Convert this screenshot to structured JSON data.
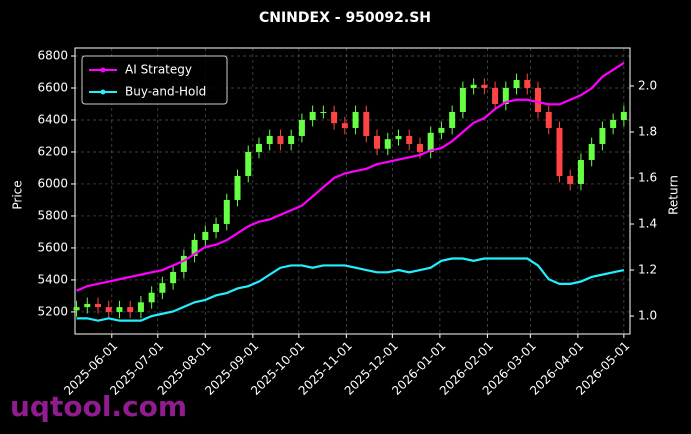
{
  "chart_data": {
    "type": "candlestick_with_returns",
    "title": "CNINDEX - 950092.SH",
    "ylabel": "Price",
    "y2label": "Return",
    "watermark": "uqtool.com",
    "x": [
      "2025-05-09",
      "2025-05-16",
      "2025-05-23",
      "2025-05-30",
      "2025-06-06",
      "2025-06-13",
      "2025-06-20",
      "2025-06-27",
      "2025-07-04",
      "2025-07-11",
      "2025-07-18",
      "2025-07-25",
      "2025-08-01",
      "2025-08-08",
      "2025-08-15",
      "2025-08-22",
      "2025-08-29",
      "2025-09-05",
      "2025-09-12",
      "2025-09-19",
      "2025-09-26",
      "2025-10-03",
      "2025-10-10",
      "2025-10-17",
      "2025-10-24",
      "2025-10-31",
      "2025-11-07",
      "2025-11-14",
      "2025-11-21",
      "2025-11-28",
      "2025-12-05",
      "2025-12-12",
      "2025-12-19",
      "2025-12-26",
      "2026-01-02",
      "2026-01-09",
      "2026-01-16",
      "2026-01-23",
      "2026-01-30",
      "2026-02-06",
      "2026-02-13",
      "2026-02-20",
      "2026-02-27",
      "2026-03-06",
      "2026-03-13",
      "2026-03-20",
      "2026-03-27",
      "2026-04-03",
      "2026-04-10",
      "2026-04-17",
      "2026-04-24",
      "2026-05-01"
    ],
    "candles": {
      "up_color": "#66ff44",
      "down_color": "#ff4444",
      "open": [
        5210,
        5230,
        5250,
        5230,
        5200,
        5230,
        5200,
        5260,
        5320,
        5380,
        5450,
        5550,
        5650,
        5700,
        5750,
        5900,
        6050,
        6200,
        6250,
        6300,
        6250,
        6300,
        6400,
        6450,
        6450,
        6380,
        6350,
        6450,
        6300,
        6220,
        6280,
        6300,
        6250,
        6200,
        6320,
        6350,
        6450,
        6600,
        6620,
        6600,
        6500,
        6600,
        6650,
        6600,
        6450,
        6350,
        6050,
        6000,
        6150,
        6250,
        6350,
        6400
      ],
      "high": [
        5270,
        5290,
        5290,
        5270,
        5270,
        5270,
        5300,
        5360,
        5420,
        5490,
        5590,
        5690,
        5740,
        5790,
        5940,
        6090,
        6240,
        6290,
        6340,
        6340,
        6340,
        6440,
        6490,
        6490,
        6490,
        6420,
        6490,
        6490,
        6340,
        6320,
        6340,
        6340,
        6290,
        6360,
        6390,
        6490,
        6640,
        6660,
        6660,
        6640,
        6640,
        6690,
        6690,
        6640,
        6490,
        6390,
        6090,
        6190,
        6290,
        6390,
        6440,
        6490
      ],
      "low": [
        5170,
        5190,
        5190,
        5160,
        5160,
        5160,
        5160,
        5220,
        5280,
        5340,
        5410,
        5510,
        5610,
        5660,
        5710,
        5860,
        6010,
        6160,
        6210,
        6210,
        6210,
        6260,
        6360,
        6410,
        6340,
        6310,
        6310,
        6260,
        6180,
        6180,
        6240,
        6210,
        6160,
        6160,
        6280,
        6310,
        6410,
        6560,
        6560,
        6460,
        6460,
        6560,
        6560,
        6410,
        6310,
        6010,
        5960,
        5960,
        6110,
        6210,
        6310,
        6360
      ],
      "close": [
        5230,
        5250,
        5230,
        5200,
        5230,
        5200,
        5260,
        5320,
        5380,
        5450,
        5550,
        5650,
        5700,
        5750,
        5900,
        6050,
        6200,
        6250,
        6300,
        6250,
        6300,
        6400,
        6450,
        6450,
        6380,
        6350,
        6450,
        6300,
        6220,
        6280,
        6300,
        6250,
        6200,
        6320,
        6350,
        6450,
        6600,
        6620,
        6600,
        6500,
        6600,
        6650,
        6600,
        6450,
        6350,
        6050,
        6000,
        6150,
        6250,
        6350,
        6400,
        6450
      ]
    },
    "series": [
      {
        "name": "AI Strategy",
        "color": "#ff00ff",
        "axis": "y2",
        "values": [
          1.11,
          1.13,
          1.14,
          1.15,
          1.16,
          1.17,
          1.18,
          1.19,
          1.2,
          1.22,
          1.24,
          1.27,
          1.3,
          1.31,
          1.33,
          1.36,
          1.39,
          1.41,
          1.42,
          1.44,
          1.46,
          1.48,
          1.52,
          1.56,
          1.6,
          1.62,
          1.63,
          1.64,
          1.66,
          1.67,
          1.68,
          1.69,
          1.7,
          1.72,
          1.73,
          1.76,
          1.8,
          1.84,
          1.86,
          1.9,
          1.93,
          1.94,
          1.94,
          1.93,
          1.92,
          1.92,
          1.94,
          1.96,
          1.99,
          2.04,
          2.07,
          2.1
        ]
      },
      {
        "name": "Buy-and-Hold",
        "color": "#22f0ff",
        "axis": "y2",
        "values": [
          0.99,
          0.99,
          0.98,
          0.99,
          0.98,
          0.98,
          0.98,
          1.0,
          1.01,
          1.02,
          1.04,
          1.06,
          1.07,
          1.09,
          1.1,
          1.12,
          1.13,
          1.15,
          1.18,
          1.21,
          1.22,
          1.22,
          1.21,
          1.22,
          1.22,
          1.22,
          1.21,
          1.2,
          1.19,
          1.19,
          1.2,
          1.19,
          1.2,
          1.21,
          1.24,
          1.25,
          1.25,
          1.24,
          1.25,
          1.25,
          1.25,
          1.25,
          1.25,
          1.22,
          1.16,
          1.14,
          1.14,
          1.15,
          1.17,
          1.18,
          1.19,
          1.2
        ]
      }
    ],
    "xlim": [
      "2025-05-08",
      "2026-05-05"
    ],
    "xticks": [
      "2025-06-01",
      "2025-07-01",
      "2025-08-01",
      "2025-09-01",
      "2025-10-01",
      "2025-11-01",
      "2025-12-01",
      "2026-01-01",
      "2026-02-01",
      "2026-03-01",
      "2026-04-01",
      "2026-05-01"
    ],
    "ylim": [
      5062,
      6850
    ],
    "yticks": [
      5200,
      5400,
      5600,
      5800,
      6000,
      6200,
      6400,
      6600,
      6800
    ],
    "y2lim": [
      0.922,
      2.165
    ],
    "y2ticks": [
      {
        "value": 1,
        "label": "1.0"
      },
      {
        "value": 1.2,
        "label": "1.2"
      },
      {
        "value": 1.4,
        "label": "1.4"
      },
      {
        "value": 1.6,
        "label": "1.6"
      },
      {
        "value": 1.8,
        "label": "1.8"
      },
      {
        "value": 2,
        "label": "2.0"
      }
    ],
    "grid": true,
    "legend": "upper left"
  }
}
